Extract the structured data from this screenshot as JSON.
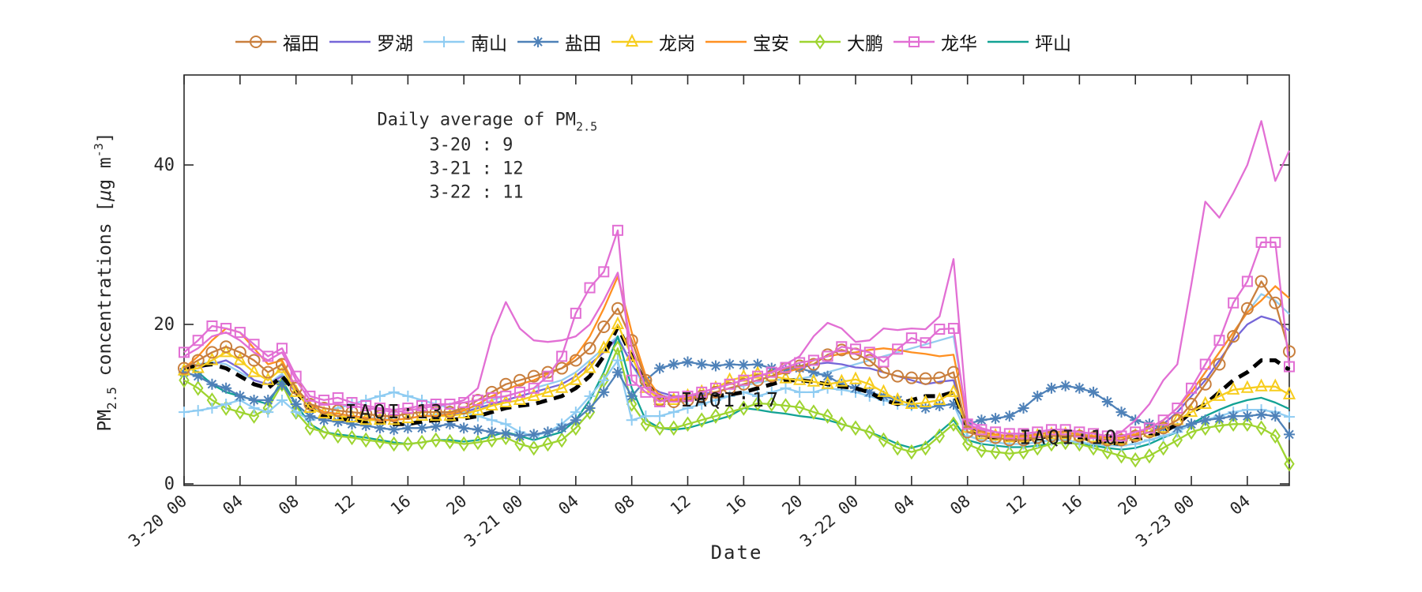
{
  "chart_data": {
    "type": "line",
    "title": "",
    "xlabel": "Date",
    "ylabel_text": "PM2.5 concentrations [μg m-3]",
    "ylabel_parts": {
      "pm": "PM",
      "sub": "2.5",
      "mid": " concentrations [",
      "mu": "μ",
      "rest": "g m",
      "sup": "-3",
      "end": "]"
    },
    "xlim": [
      0,
      79
    ],
    "ylim": [
      0,
      51.3
    ],
    "y_ticks": [
      0,
      20,
      40
    ],
    "x_tick_hours": [
      0,
      4,
      8,
      12,
      16,
      20,
      24,
      28,
      32,
      36,
      40,
      44,
      48,
      52,
      56,
      60,
      64,
      68,
      72,
      76
    ],
    "x_tick_labels": [
      "3-20 00",
      "04",
      "08",
      "12",
      "16",
      "20",
      "3-21 00",
      "04",
      "08",
      "12",
      "16",
      "20",
      "3-22 00",
      "04",
      "08",
      "12",
      "16",
      "20",
      "3-23 00",
      "04"
    ],
    "x_unit": "hours since 3-20 00:00, hourly samples",
    "grid": false,
    "legend_position": "top",
    "annotations": {
      "daily_average": {
        "title_prefix": "Daily average of PM",
        "title_sub": "2.5",
        "entries": [
          "3-20 : 9",
          "3-21 : 12",
          "3-22 : 11"
        ],
        "anchor": {
          "hour": 13.8,
          "value": 45.0
        }
      },
      "iaqi": [
        {
          "text": "IAQI:13",
          "hour": 11.5,
          "value": 8.2
        },
        {
          "text": "IAQI:17",
          "hour": 35.5,
          "value": 9.7
        },
        {
          "text": "IAQI:10",
          "hour": 59.7,
          "value": 5.0
        }
      ]
    },
    "series": [
      {
        "name": "福田",
        "color": "#C97F3D",
        "marker": "circle",
        "in_legend": true,
        "values": [
          14.5,
          15.5,
          16.5,
          17.2,
          16.5,
          15.5,
          14,
          15,
          12,
          10,
          9.5,
          9.2,
          9,
          8.8,
          8.5,
          8.5,
          8.8,
          9,
          9,
          9,
          9.5,
          10.5,
          11.5,
          12.5,
          13,
          13.5,
          14,
          14.5,
          15.5,
          17,
          19.7,
          22,
          18,
          13,
          10.5,
          10.3,
          10.5,
          11,
          11.5,
          12,
          12.5,
          13,
          13.5,
          14.5,
          14.8,
          15,
          16.2,
          16.8,
          16.3,
          15.5,
          14,
          13.5,
          13.3,
          13.2,
          13.3,
          14,
          6.5,
          6,
          5.8,
          5.5,
          5.5,
          5.8,
          6,
          6,
          6,
          5.8,
          5.5,
          5.5,
          6,
          6.5,
          7,
          8,
          10,
          12.5,
          15,
          18.5,
          22,
          25.4,
          22.7,
          16.6
        ]
      },
      {
        "name": "罗湖",
        "color": "#7566D8",
        "marker": "none",
        "in_legend": true,
        "values": [
          14.3,
          14.5,
          15,
          15.5,
          14.5,
          13,
          12.5,
          13.5,
          11.5,
          9.5,
          8.8,
          8.5,
          8.3,
          8,
          8,
          8,
          8.2,
          8.5,
          8.5,
          8.7,
          9,
          9.5,
          10,
          10.5,
          11,
          11.5,
          12,
          12.5,
          13.5,
          15,
          16.5,
          18.3,
          15,
          12.5,
          11.5,
          11,
          11,
          11.3,
          11.5,
          12,
          12.5,
          13,
          13.5,
          14,
          14.5,
          15,
          15.2,
          15,
          14.6,
          14.5,
          14,
          13.5,
          13,
          12.5,
          12.8,
          13,
          7,
          6.5,
          6,
          5.8,
          5.8,
          6,
          6.2,
          6.2,
          6,
          5.8,
          5.5,
          5.5,
          6,
          6.5,
          7.5,
          9,
          11,
          13,
          15.5,
          18,
          20,
          21,
          20.5,
          19.2
        ]
      },
      {
        "name": "南山",
        "color": "#8FCCF2",
        "marker": "plus",
        "in_legend": true,
        "values": [
          9,
          9.2,
          9.5,
          10,
          10.5,
          9.5,
          9,
          10.5,
          9,
          8,
          8.5,
          9.5,
          10,
          10.5,
          11,
          11.5,
          11,
          10.5,
          10,
          9.5,
          9,
          8.5,
          8,
          7.5,
          6.5,
          6,
          6.5,
          7.5,
          9,
          11,
          13,
          15.5,
          8,
          8.5,
          8.5,
          9,
          9.5,
          10,
          10.5,
          11,
          11.5,
          11,
          11.5,
          12,
          11.5,
          11.5,
          12,
          11.8,
          11.5,
          11,
          10.5,
          10,
          9.8,
          9.5,
          9.8,
          10,
          6,
          5.5,
          5.2,
          5,
          5,
          5.2,
          5.5,
          5.5,
          5.2,
          5,
          4.8,
          4.8,
          5,
          5.5,
          6,
          6.5,
          7.5,
          8,
          8.5,
          9,
          9.3,
          9.3,
          9,
          8.4
        ]
      },
      {
        "name": "盐田",
        "color": "#4E81B8",
        "marker": "asterisk",
        "in_legend": true,
        "values": [
          14,
          13.5,
          12.5,
          12,
          11,
          10.5,
          10.5,
          12.5,
          10,
          8.5,
          8,
          7.8,
          7.5,
          7.3,
          7,
          6.8,
          7,
          7,
          7.2,
          7.5,
          7,
          6.8,
          6.5,
          6.3,
          6,
          6.2,
          6.5,
          7,
          8,
          9.5,
          11.5,
          14,
          11,
          13,
          14.5,
          15,
          15.3,
          15,
          14.8,
          15,
          14.9,
          15,
          14.5,
          14.3,
          14.5,
          14,
          13.5,
          12.5,
          12,
          11.5,
          11,
          10.5,
          10,
          9.5,
          9.8,
          10,
          7.5,
          8,
          8.2,
          8.5,
          9.5,
          11,
          12,
          12.3,
          12,
          11.5,
          10.3,
          9,
          8,
          7.5,
          7,
          7,
          7.5,
          8,
          8.2,
          8.5,
          8.5,
          8.7,
          8.5,
          6.2
        ]
      },
      {
        "name": "龙岗",
        "color": "#F7CD1E",
        "marker": "triangle",
        "in_legend": true,
        "values": [
          14.2,
          14.5,
          15.5,
          16.5,
          15.5,
          14,
          13,
          14.5,
          11.5,
          9.5,
          8.8,
          8.5,
          8.3,
          8,
          8,
          8,
          8.2,
          8.5,
          8.5,
          8.5,
          8.8,
          9.2,
          9.8,
          10.2,
          10.5,
          11,
          11.5,
          12,
          13,
          14.5,
          17,
          20,
          16,
          12,
          10.5,
          10.5,
          11,
          11.5,
          12,
          13,
          13.4,
          13.8,
          13.5,
          13.2,
          13,
          12.8,
          12.5,
          12.8,
          13.1,
          12.5,
          11.5,
          10.5,
          10,
          10.2,
          10.5,
          11.5,
          7,
          6.2,
          6,
          5.8,
          5.8,
          6,
          6.2,
          6.2,
          6,
          5.8,
          5.5,
          5.5,
          6,
          6.5,
          7,
          8,
          9,
          10,
          11,
          11.8,
          12,
          12.2,
          12.2,
          11.2
        ]
      },
      {
        "name": "宝安",
        "color": "#FF9021",
        "marker": "none",
        "in_legend": true,
        "values": [
          14.5,
          16,
          18,
          19.5,
          19,
          17,
          15,
          15.5,
          12,
          10,
          9,
          8.8,
          8.5,
          8.3,
          8,
          8,
          8.2,
          8.5,
          8.5,
          8.8,
          9.2,
          10,
          11,
          11.8,
          12.5,
          13,
          13.8,
          14.5,
          16,
          18.5,
          22,
          26,
          19,
          13.5,
          11,
          10.5,
          10.8,
          11,
          11.5,
          12,
          12.5,
          13,
          13.5,
          14,
          14.5,
          15.5,
          16,
          16.3,
          16.5,
          16.8,
          17,
          16.8,
          16.5,
          16.3,
          16,
          16.2,
          7.5,
          6.5,
          6.2,
          6,
          6,
          6.2,
          6.5,
          6.5,
          6.2,
          6,
          5.8,
          5.8,
          6.2,
          7,
          8,
          9.5,
          11.5,
          14,
          16.5,
          19,
          21.5,
          23,
          24.8,
          23.3
        ]
      },
      {
        "name": "大鹏",
        "color": "#9ED430",
        "marker": "diamond",
        "in_legend": true,
        "values": [
          13,
          12,
          10.5,
          9.5,
          9,
          8.5,
          9.5,
          12.5,
          9,
          7,
          6.5,
          6,
          5.8,
          5.5,
          5.3,
          5,
          5,
          5.2,
          5.5,
          5.3,
          5,
          5.2,
          5.5,
          5.8,
          5,
          4.5,
          5,
          5.5,
          7,
          9,
          13,
          17,
          10,
          7.5,
          7,
          7,
          7.5,
          8,
          8.5,
          9,
          9.5,
          10.1,
          10,
          9.8,
          9.6,
          9,
          8.5,
          7.5,
          7,
          6.5,
          5.5,
          4.5,
          4,
          4.5,
          6,
          7.5,
          5,
          4.2,
          4,
          3.8,
          4,
          4.5,
          5,
          5.2,
          5,
          4.5,
          4,
          3.5,
          3,
          3.5,
          4.5,
          5.5,
          6.5,
          7,
          7.3,
          7.5,
          7.5,
          7,
          6,
          2.5
        ]
      },
      {
        "name": "龙华",
        "color": "#E26FD4",
        "marker": "square",
        "in_legend": true,
        "values": [
          16.5,
          18,
          19.8,
          19.5,
          19,
          17.5,
          16,
          17,
          13.5,
          11,
          10.5,
          10.8,
          10.2,
          9.8,
          9.5,
          9.3,
          9.5,
          9.8,
          10,
          10,
          10.2,
          10.5,
          10.8,
          11,
          11.5,
          12,
          13.5,
          16,
          21.4,
          24.6,
          26.6,
          31.8,
          13,
          11.5,
          10.3,
          10.9,
          11,
          11.5,
          12,
          12.5,
          13,
          13.5,
          14,
          14.6,
          15.2,
          15.5,
          16,
          17.2,
          16.9,
          16.5,
          15.3,
          16.9,
          18.3,
          17.7,
          19.4,
          19.5,
          7.5,
          6.8,
          6.5,
          6.3,
          6.3,
          6.5,
          6.8,
          6.8,
          6.5,
          6.3,
          6,
          6,
          6.5,
          7,
          8,
          9.5,
          12,
          15,
          18,
          22.7,
          25.4,
          30.3,
          30.3,
          14.7
        ]
      },
      {
        "name": "坪山",
        "color": "#12A294",
        "marker": "none",
        "in_legend": true,
        "values": [
          14.8,
          14,
          12.5,
          11.5,
          11,
          10.5,
          10,
          13,
          10,
          7.5,
          6.5,
          6.2,
          6,
          5.8,
          5.5,
          5.2,
          5,
          5.2,
          5.5,
          5.5,
          5.3,
          5.5,
          6,
          6.5,
          6,
          5.5,
          6,
          6.5,
          8,
          10.5,
          14,
          18.5,
          12,
          8,
          7,
          6.8,
          7,
          7.5,
          8,
          8.5,
          9.5,
          9.3,
          9,
          8.8,
          8.5,
          8.3,
          8,
          7.5,
          7,
          6.5,
          5.8,
          5,
          4.5,
          5,
          6.5,
          8,
          5.5,
          5,
          4.8,
          4.6,
          4.6,
          4.8,
          5,
          5.2,
          5,
          4.8,
          4.5,
          4.3,
          4.5,
          5,
          5.8,
          6.5,
          7.5,
          8.5,
          9.3,
          10,
          10.5,
          10.8,
          10.2,
          9.4
        ]
      },
      {
        "name": "unlabeled-magenta",
        "color": "#E26FD4",
        "marker": "none",
        "in_legend": false,
        "values": [
          16,
          17,
          18.5,
          19,
          18,
          16.5,
          15.5,
          16.5,
          13,
          10.5,
          10,
          10,
          9.8,
          9.5,
          9.3,
          9,
          9.2,
          9.5,
          9.8,
          10,
          10.5,
          12,
          18.5,
          22.8,
          19.5,
          18,
          17.8,
          18,
          18.5,
          20,
          23,
          26.5,
          17,
          12,
          11,
          10.8,
          11,
          11.5,
          12,
          12.5,
          13,
          13.5,
          14,
          15,
          16,
          18.5,
          20.2,
          19.5,
          17.8,
          18,
          19.5,
          19.3,
          19.5,
          19.4,
          21,
          28.2,
          8,
          7,
          6.5,
          6.3,
          6.3,
          6.5,
          6.8,
          6.8,
          6.5,
          6.3,
          6,
          6.5,
          8,
          10,
          13,
          15,
          25,
          35.4,
          33.4,
          36.5,
          40,
          45.5,
          38,
          41.8
        ]
      },
      {
        "name": "unlabeled-lightblue",
        "color": "#93CCEF",
        "marker": "none",
        "in_legend": false,
        "values": [
          14.8,
          15,
          15.3,
          15,
          14,
          13,
          12.5,
          13.8,
          11.5,
          9.8,
          9,
          8.8,
          8.5,
          8.3,
          8.2,
          8,
          8.2,
          8.5,
          8.7,
          9,
          9.3,
          9.8,
          10.5,
          11,
          11.5,
          12,
          12.5,
          13,
          14,
          15.5,
          17,
          18.5,
          15,
          12,
          11,
          10.8,
          11,
          11.2,
          11.5,
          12,
          12.3,
          12.7,
          13,
          13.1,
          13.2,
          13.5,
          14,
          14.5,
          15,
          15.5,
          16,
          16.5,
          17,
          17.5,
          18,
          18.5,
          8,
          7,
          6.5,
          6.3,
          6.2,
          6.3,
          6.5,
          6.5,
          6.3,
          6,
          5.8,
          5.8,
          6.2,
          7,
          8,
          9.5,
          11.5,
          14,
          16.5,
          19,
          21.5,
          23.8,
          23,
          21.3
        ]
      },
      {
        "name": "average",
        "color": "#000000",
        "marker": "none",
        "in_legend": false,
        "width": 5,
        "dash": "14 9",
        "values": [
          14.5,
          14.8,
          15,
          14.5,
          13.5,
          12.5,
          12,
          13.5,
          11.5,
          9.5,
          8.5,
          8.2,
          8,
          7.8,
          7.8,
          7.5,
          7.5,
          7.8,
          8,
          8,
          8.2,
          8.5,
          9,
          9.5,
          9.8,
          10,
          10.5,
          11,
          12,
          13.5,
          16,
          19.7,
          16,
          12.5,
          11,
          10.5,
          10.5,
          10.8,
          11,
          11.2,
          11.5,
          12,
          12.5,
          13,
          13,
          12.8,
          12.5,
          12.2,
          12,
          11.5,
          10.5,
          10,
          10.5,
          11,
          11,
          11.5,
          7,
          6,
          5.8,
          5.5,
          5.5,
          5.8,
          6,
          6,
          5.8,
          5.5,
          5.2,
          5,
          5.5,
          6,
          6.5,
          7.5,
          9,
          10,
          11.5,
          13,
          14,
          15.5,
          15.5,
          14.3
        ]
      }
    ]
  }
}
